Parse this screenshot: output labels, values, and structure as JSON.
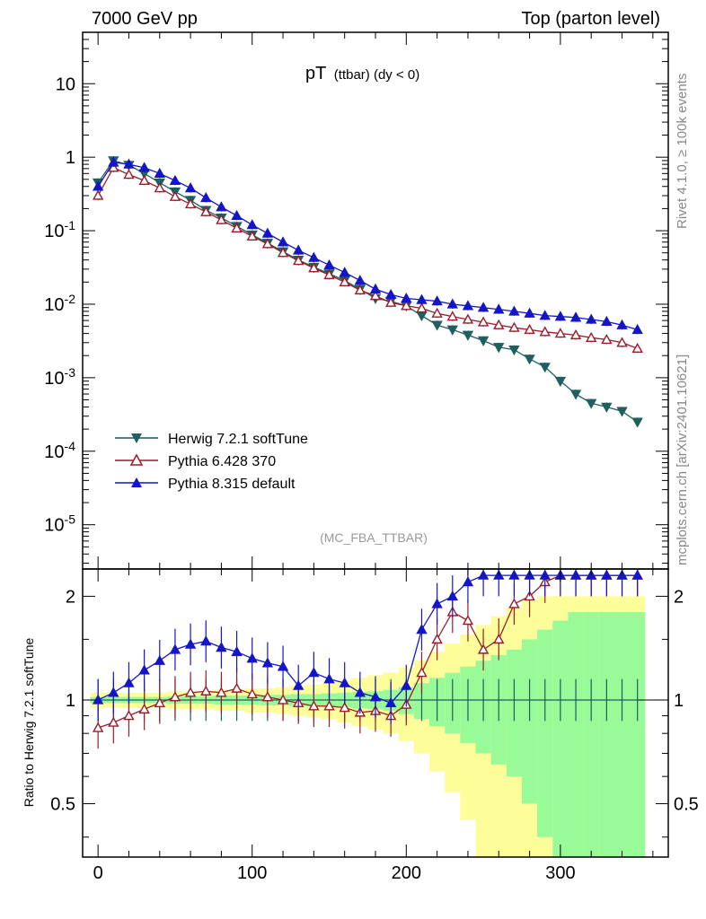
{
  "header": {
    "left": "7000 GeV pp",
    "right": "Top (parton level)"
  },
  "side_labels": {
    "rivet": "Rivet 4.1.0, ≥ 100k events",
    "mcplots": "mcplots.cern.ch [arXiv:2401.10621]"
  },
  "analysis_tag": "(MC_FBA_TTBAR)",
  "chart_data": [
    {
      "type": "scatter",
      "title": "pT (ttbar) (dy < 0)",
      "title_main": "pT",
      "title_sub": "(ttbar) (dy < 0)",
      "yscale": "log",
      "xlim": [
        -10,
        370
      ],
      "ylim": [
        2.5e-06,
        50
      ],
      "ytick_labels": [
        "10",
        "1",
        "10^-1",
        "10^-2",
        "10^-3",
        "10^-4",
        "10^-5"
      ],
      "legend_position": "lower-left",
      "series": [
        {
          "name": "Herwig 7.2.1 softTune",
          "color": "#1f5f5f",
          "marker": "triangle-down-filled",
          "x": [
            0,
            10,
            20,
            30,
            40,
            50,
            60,
            70,
            80,
            90,
            100,
            110,
            120,
            130,
            140,
            150,
            160,
            170,
            180,
            190,
            200,
            210,
            220,
            230,
            240,
            250,
            260,
            270,
            280,
            290,
            300,
            310,
            320,
            330,
            340,
            350
          ],
          "y": [
            0.45,
            0.9,
            0.78,
            0.6,
            0.45,
            0.34,
            0.26,
            0.19,
            0.15,
            0.115,
            0.088,
            0.068,
            0.052,
            0.04,
            0.032,
            0.026,
            0.021,
            0.016,
            0.012,
            0.011,
            0.0095,
            0.007,
            0.0052,
            0.0045,
            0.0038,
            0.0032,
            0.0026,
            0.0024,
            0.0018,
            0.0014,
            0.0009,
            0.0006,
            0.00045,
            0.0004,
            0.00035,
            0.00025
          ]
        },
        {
          "name": "Pythia 6.428 370",
          "color": "#9b1b2a",
          "marker": "triangle-up-open",
          "x": [
            0,
            10,
            20,
            30,
            40,
            50,
            60,
            70,
            80,
            90,
            100,
            110,
            120,
            130,
            140,
            150,
            160,
            170,
            180,
            190,
            200,
            210,
            220,
            230,
            240,
            250,
            260,
            270,
            280,
            290,
            300,
            310,
            320,
            330,
            340,
            350
          ],
          "y": [
            0.3,
            0.72,
            0.58,
            0.48,
            0.38,
            0.29,
            0.23,
            0.18,
            0.14,
            0.108,
            0.084,
            0.066,
            0.05,
            0.039,
            0.031,
            0.025,
            0.02,
            0.0155,
            0.013,
            0.0105,
            0.0095,
            0.0088,
            0.0075,
            0.0068,
            0.0062,
            0.0057,
            0.0052,
            0.0048,
            0.0045,
            0.0042,
            0.004,
            0.0038,
            0.0035,
            0.0033,
            0.003,
            0.0025
          ]
        },
        {
          "name": "Pythia 8.315 default",
          "color": "#1515c8",
          "marker": "triangle-up-filled",
          "x": [
            0,
            10,
            20,
            30,
            40,
            50,
            60,
            70,
            80,
            90,
            100,
            110,
            120,
            130,
            140,
            150,
            160,
            170,
            180,
            190,
            200,
            210,
            220,
            230,
            240,
            250,
            260,
            270,
            280,
            290,
            300,
            310,
            320,
            330,
            340,
            350
          ],
          "y": [
            0.4,
            0.85,
            0.8,
            0.72,
            0.6,
            0.48,
            0.38,
            0.28,
            0.21,
            0.16,
            0.12,
            0.092,
            0.07,
            0.054,
            0.043,
            0.034,
            0.027,
            0.021,
            0.016,
            0.0135,
            0.012,
            0.0115,
            0.011,
            0.01,
            0.0095,
            0.009,
            0.0085,
            0.008,
            0.0075,
            0.007,
            0.0068,
            0.0066,
            0.0062,
            0.0058,
            0.0052,
            0.0045
          ]
        }
      ]
    },
    {
      "type": "scatter",
      "ylabel": "Ratio to Herwig 7.2.1 softTune",
      "yscale": "log",
      "xlim": [
        -10,
        370
      ],
      "ylim": [
        0.35,
        2.4
      ],
      "xtick_labels": [
        "0",
        "100",
        "200",
        "300"
      ],
      "ytick_labels": [
        "0.5",
        "1",
        "2"
      ],
      "reference_line": 1,
      "bands": {
        "x": [
          0,
          10,
          20,
          30,
          40,
          50,
          60,
          70,
          80,
          90,
          100,
          110,
          120,
          130,
          140,
          150,
          160,
          170,
          180,
          190,
          200,
          210,
          220,
          230,
          240,
          250,
          260,
          270,
          280,
          290,
          300,
          310,
          320,
          330,
          340,
          350
        ],
        "inner_halfwidth": [
          0.02,
          0.02,
          0.02,
          0.02,
          0.02,
          0.025,
          0.025,
          0.025,
          0.03,
          0.03,
          0.03,
          0.035,
          0.035,
          0.04,
          0.04,
          0.045,
          0.05,
          0.055,
          0.06,
          0.07,
          0.09,
          0.12,
          0.16,
          0.2,
          0.25,
          0.3,
          0.35,
          0.4,
          0.5,
          0.6,
          0.7,
          0.8,
          0.8,
          0.8,
          0.8,
          0.8
        ],
        "outer_halfwidth": [
          0.05,
          0.05,
          0.05,
          0.05,
          0.05,
          0.06,
          0.06,
          0.06,
          0.07,
          0.07,
          0.08,
          0.08,
          0.09,
          0.1,
          0.11,
          0.12,
          0.14,
          0.16,
          0.18,
          0.2,
          0.24,
          0.3,
          0.38,
          0.46,
          0.55,
          0.65,
          0.75,
          0.85,
          0.95,
          1.0,
          1.0,
          1.0,
          1.0,
          1.0,
          1.0,
          1.0
        ]
      },
      "series": [
        {
          "name": "Herwig 7.2.1 softTune",
          "color": "#1f5f5f",
          "x": [
            0,
            10,
            20,
            30,
            40,
            50,
            60,
            70,
            80,
            90,
            100,
            110,
            120,
            130,
            140,
            150,
            160,
            170,
            180,
            190,
            200,
            210,
            220,
            230,
            240,
            250,
            260,
            270,
            280,
            290,
            300,
            310,
            320,
            330,
            340,
            350
          ],
          "y": [
            1,
            1,
            1,
            1,
            1,
            1,
            1,
            1,
            1,
            1,
            1,
            1,
            1,
            1,
            1,
            1,
            1,
            1,
            1,
            1,
            1,
            1,
            1,
            1,
            1,
            1,
            1,
            1,
            1,
            1,
            1,
            1,
            1,
            1,
            1,
            1
          ]
        },
        {
          "name": "Pythia 6.428 370",
          "color": "#9b1b2a",
          "x": [
            0,
            10,
            20,
            30,
            40,
            50,
            60,
            70,
            80,
            90,
            100,
            110,
            120,
            130,
            140,
            150,
            160,
            170,
            180,
            190,
            200,
            210,
            220,
            230,
            240,
            250,
            260,
            270,
            280,
            290,
            300,
            310,
            320,
            330,
            340,
            350
          ],
          "y": [
            0.83,
            0.86,
            0.9,
            0.94,
            0.98,
            1.02,
            1.05,
            1.06,
            1.05,
            1.08,
            1.04,
            1.02,
            1.0,
            0.98,
            0.96,
            0.96,
            0.95,
            0.92,
            0.93,
            0.9,
            0.97,
            1.2,
            1.5,
            1.8,
            1.7,
            1.4,
            1.5,
            1.9,
            2.0,
            2.2,
            2.3,
            2.3,
            2.3,
            2.3,
            2.3,
            2.3
          ]
        },
        {
          "name": "Pythia 8.315 default",
          "color": "#1515c8",
          "x": [
            0,
            10,
            20,
            30,
            40,
            50,
            60,
            70,
            80,
            90,
            100,
            110,
            120,
            130,
            140,
            150,
            160,
            170,
            180,
            190,
            200,
            210,
            220,
            230,
            240,
            250,
            260,
            270,
            280,
            290,
            300,
            310,
            320,
            330,
            340,
            350
          ],
          "y": [
            1.0,
            1.05,
            1.12,
            1.22,
            1.3,
            1.4,
            1.45,
            1.48,
            1.42,
            1.38,
            1.32,
            1.28,
            1.25,
            1.1,
            1.2,
            1.15,
            1.12,
            1.05,
            1.02,
            0.98,
            1.1,
            1.6,
            1.9,
            2.0,
            2.2,
            2.3,
            2.3,
            2.3,
            2.3,
            2.3,
            2.3,
            2.3,
            2.3,
            2.3,
            2.3,
            2.3
          ]
        }
      ]
    }
  ]
}
